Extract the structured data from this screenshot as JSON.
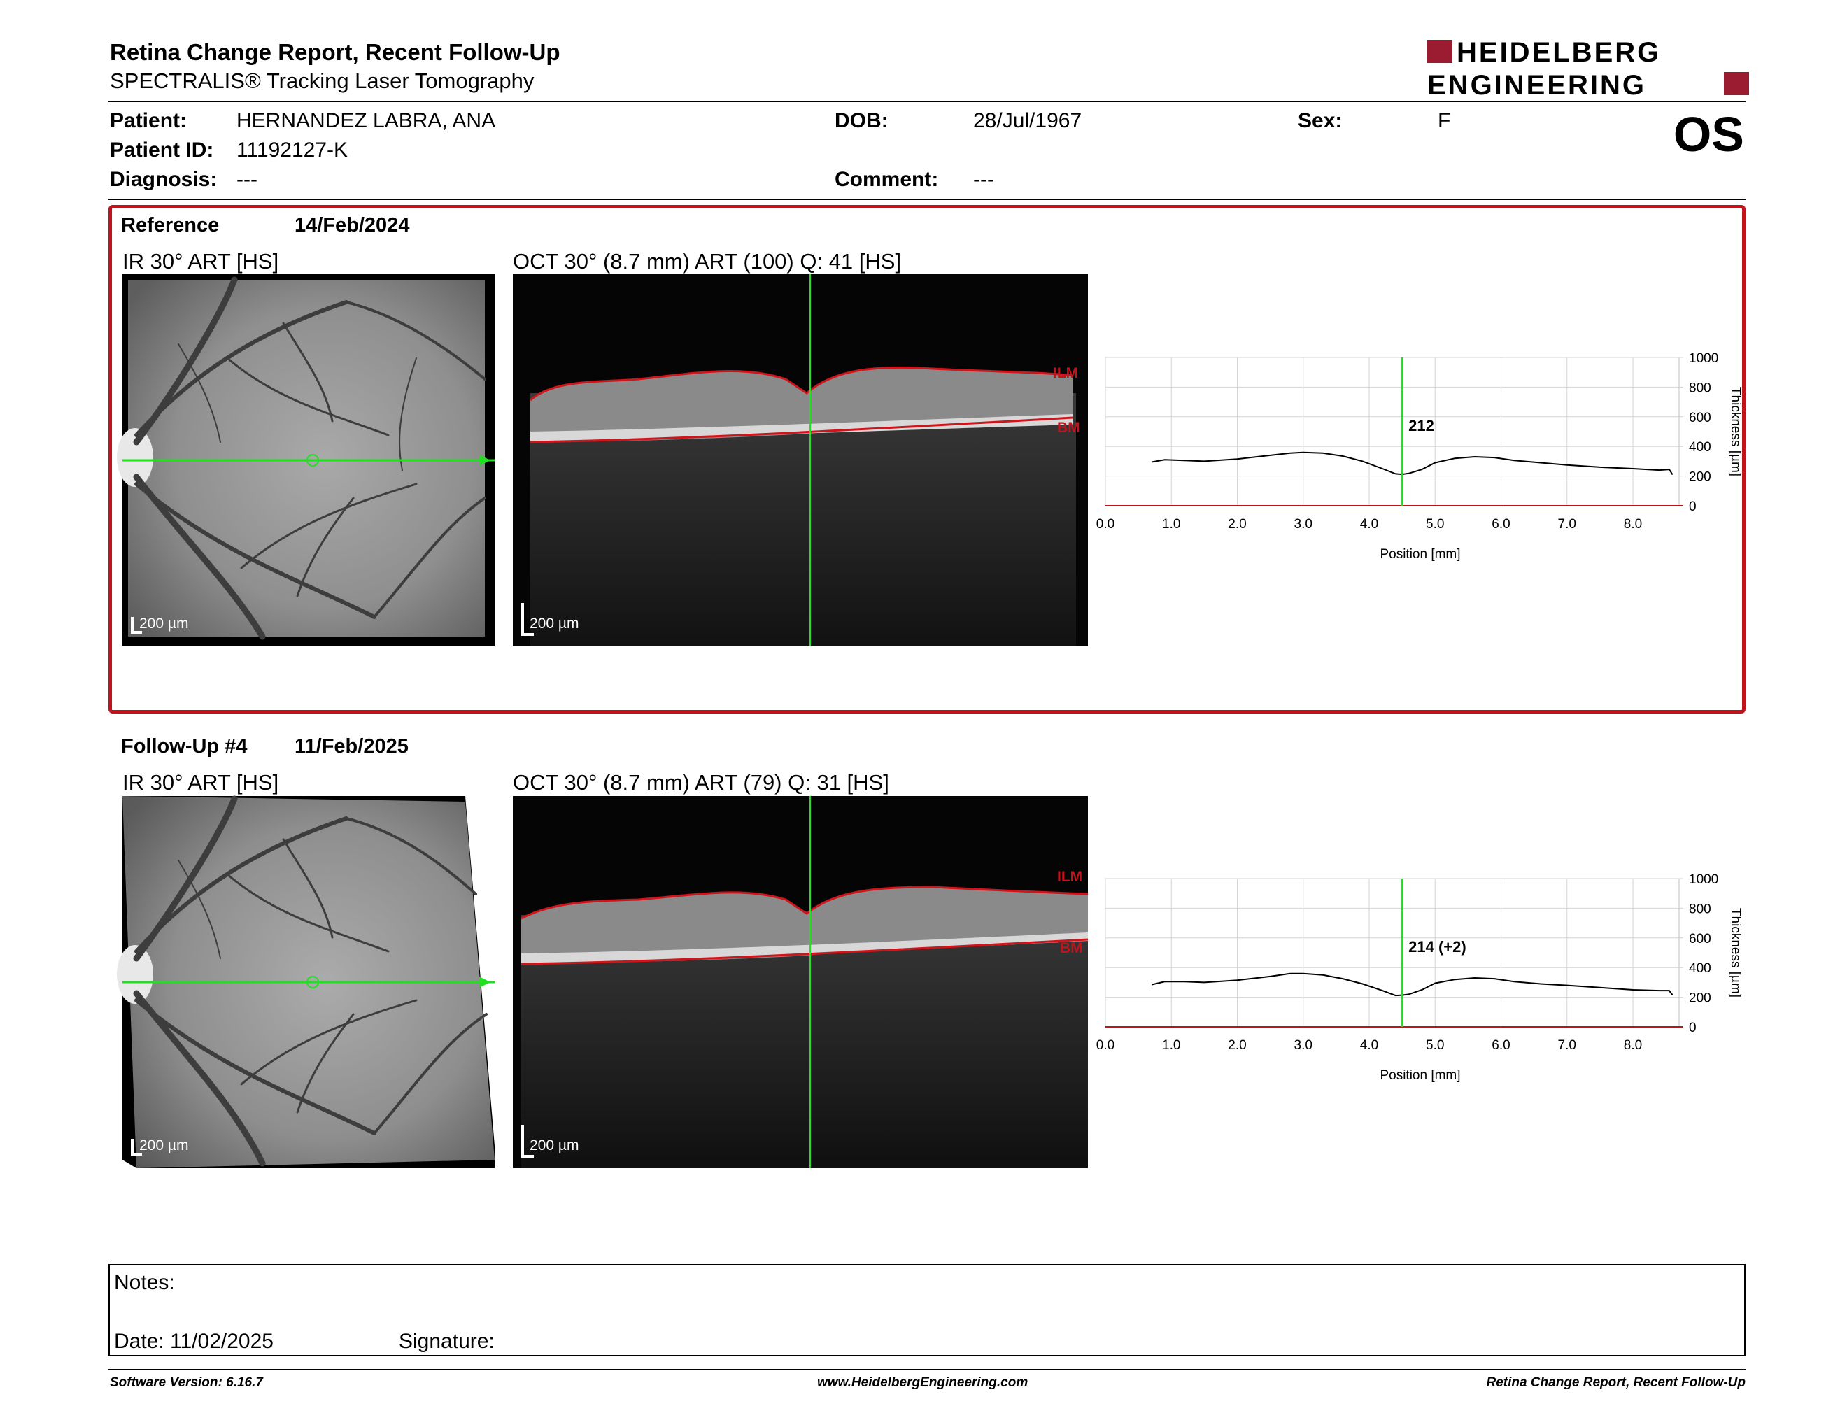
{
  "header": {
    "title": "Retina Change Report, Recent Follow-Up",
    "subtitle": "SPECTRALIS® Tracking Laser Tomography",
    "logo_line1": "HEIDELBERG",
    "logo_line2": "ENGINEERING",
    "brand_color": "#9b1b30"
  },
  "patient": {
    "patient_label": "Patient:",
    "patient_value": "HERNANDEZ LABRA, ANA",
    "id_label": "Patient ID:",
    "id_value": "11192127-K",
    "diagnosis_label": "Diagnosis:",
    "diagnosis_value": "---",
    "dob_label": "DOB:",
    "dob_value": "28/Jul/1967",
    "comment_label": "Comment:",
    "comment_value": "---",
    "sex_label": "Sex:",
    "sex_value": "F",
    "eye": "OS"
  },
  "reference": {
    "label": "Reference",
    "date": "14/Feb/2024",
    "ir_caption": "IR 30° ART [HS]",
    "oct_caption": "OCT 30° (8.7 mm) ART (100) Q: 41 [HS]",
    "scale_bar": "200 µm",
    "ilm_label": "ILM",
    "bm_label": "BM",
    "border_color": "#c0141c"
  },
  "followup": {
    "label": "Follow-Up #4",
    "date": "11/Feb/2025",
    "ir_caption": "IR 30° ART [HS]",
    "oct_caption": "OCT 30° (8.7 mm) ART (79) Q: 31 [HS]",
    "scale_bar": "200 µm",
    "ilm_label": "ILM",
    "bm_label": "BM"
  },
  "chart_data": [
    {
      "type": "line",
      "xlabel": "Position [mm]",
      "ylabel": "Thickness [µm]",
      "xlim": [
        0,
        8.7
      ],
      "ylim": [
        0,
        1000
      ],
      "x_ticks": [
        "0.0",
        "1.0",
        "2.0",
        "3.0",
        "4.0",
        "5.0",
        "6.0",
        "7.0",
        "8.0"
      ],
      "y_ticks": [
        "0",
        "200",
        "400",
        "600",
        "800",
        "1000"
      ],
      "cursor_x": 4.5,
      "cursor_label": "212",
      "grid": true,
      "x": [
        0.7,
        0.9,
        1.2,
        1.5,
        2.0,
        2.5,
        2.8,
        3.0,
        3.3,
        3.6,
        3.9,
        4.2,
        4.4,
        4.5,
        4.6,
        4.8,
        5.0,
        5.3,
        5.6,
        5.9,
        6.2,
        6.6,
        7.0,
        7.5,
        8.0,
        8.4,
        8.55,
        8.6
      ],
      "y": [
        295,
        310,
        305,
        300,
        315,
        340,
        355,
        360,
        355,
        335,
        300,
        250,
        215,
        212,
        218,
        245,
        290,
        320,
        330,
        325,
        305,
        290,
        275,
        260,
        250,
        240,
        245,
        210
      ]
    },
    {
      "type": "line",
      "xlabel": "Position [mm]",
      "ylabel": "Thickness [µm]",
      "xlim": [
        0,
        8.7
      ],
      "ylim": [
        0,
        1000
      ],
      "x_ticks": [
        "0.0",
        "1.0",
        "2.0",
        "3.0",
        "4.0",
        "5.0",
        "6.0",
        "7.0",
        "8.0"
      ],
      "y_ticks": [
        "0",
        "200",
        "400",
        "600",
        "800",
        "1000"
      ],
      "cursor_x": 4.5,
      "cursor_label": "214 (+2)",
      "grid": true,
      "x": [
        0.7,
        0.9,
        1.2,
        1.5,
        2.0,
        2.5,
        2.8,
        3.0,
        3.3,
        3.6,
        3.9,
        4.2,
        4.4,
        4.5,
        4.6,
        4.8,
        5.0,
        5.3,
        5.6,
        5.9,
        6.2,
        6.6,
        7.0,
        7.5,
        8.0,
        8.4,
        8.55,
        8.6
      ],
      "y": [
        285,
        305,
        305,
        300,
        315,
        340,
        360,
        360,
        350,
        325,
        290,
        245,
        212,
        214,
        220,
        250,
        295,
        320,
        330,
        325,
        305,
        290,
        280,
        265,
        250,
        245,
        245,
        215
      ]
    }
  ],
  "notes": {
    "notes_label": "Notes:",
    "date_label": "Date: 11/02/2025",
    "signature_label": "Signature:"
  },
  "footer": {
    "software": "Software Version: 6.16.7",
    "website": "www.HeidelbergEngineering.com",
    "report_name": "Retina Change Report, Recent Follow-Up"
  }
}
